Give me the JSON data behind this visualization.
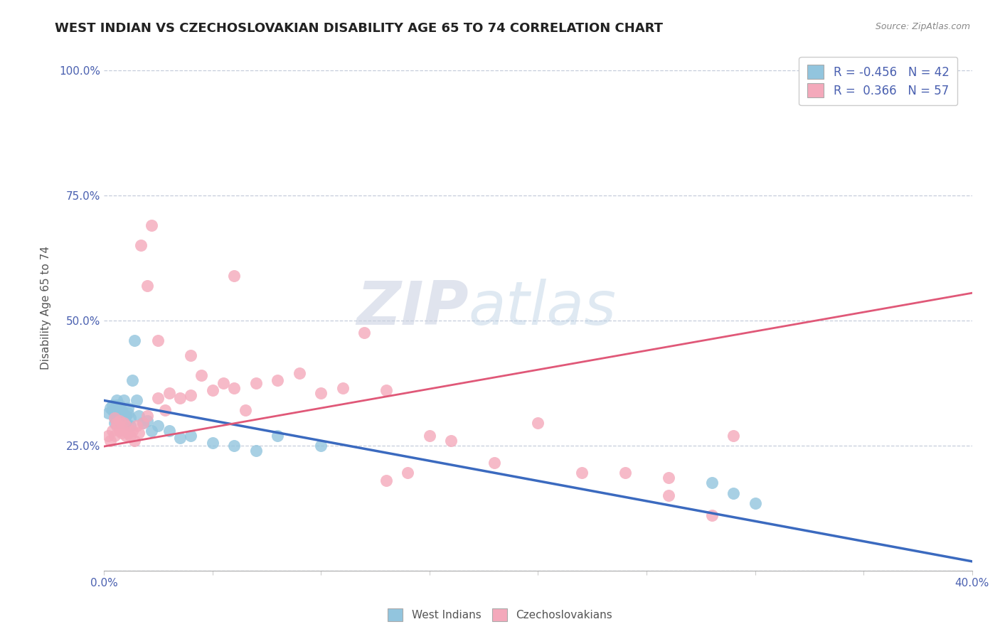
{
  "title": "WEST INDIAN VS CZECHOSLOVAKIAN DISABILITY AGE 65 TO 74 CORRELATION CHART",
  "source": "Source: ZipAtlas.com",
  "ylabel": "Disability Age 65 to 74",
  "xlim": [
    0.0,
    0.4
  ],
  "ylim": [
    0.0,
    1.05
  ],
  "ytick_positions": [
    0.0,
    0.25,
    0.5,
    0.75,
    1.0
  ],
  "ytick_labels": [
    "",
    "25.0%",
    "50.0%",
    "75.0%",
    "100.0%"
  ],
  "xtick_positions": [
    0.0,
    0.05,
    0.1,
    0.15,
    0.2,
    0.25,
    0.3,
    0.35,
    0.4
  ],
  "xtick_labels": [
    "0.0%",
    "",
    "",
    "",
    "",
    "",
    "",
    "",
    "40.0%"
  ],
  "legend_blue_label": "West Indians",
  "legend_pink_label": "Czechoslovakians",
  "blue_R": -0.456,
  "pink_R": 0.366,
  "blue_N": 42,
  "pink_N": 57,
  "blue_color": "#92c5de",
  "pink_color": "#f4a9bb",
  "blue_line_color": "#3b6abf",
  "pink_line_color": "#e05878",
  "watermark_zip": "ZIP",
  "watermark_atlas": "atlas",
  "title_fontsize": 13,
  "axis_label_fontsize": 11,
  "tick_fontsize": 11,
  "blue_trend_y0": 0.34,
  "blue_trend_y1": 0.018,
  "pink_trend_y0": 0.248,
  "pink_trend_y1": 0.555,
  "blue_x": [
    0.002,
    0.003,
    0.004,
    0.004,
    0.005,
    0.005,
    0.005,
    0.006,
    0.006,
    0.007,
    0.007,
    0.007,
    0.008,
    0.008,
    0.008,
    0.009,
    0.009,
    0.01,
    0.01,
    0.011,
    0.011,
    0.012,
    0.012,
    0.013,
    0.014,
    0.015,
    0.016,
    0.018,
    0.02,
    0.022,
    0.025,
    0.03,
    0.035,
    0.04,
    0.05,
    0.06,
    0.07,
    0.08,
    0.1,
    0.28,
    0.29,
    0.3
  ],
  "blue_y": [
    0.315,
    0.325,
    0.32,
    0.33,
    0.295,
    0.305,
    0.315,
    0.33,
    0.34,
    0.31,
    0.32,
    0.33,
    0.295,
    0.305,
    0.32,
    0.3,
    0.34,
    0.295,
    0.31,
    0.315,
    0.325,
    0.29,
    0.305,
    0.38,
    0.46,
    0.34,
    0.31,
    0.295,
    0.3,
    0.28,
    0.29,
    0.28,
    0.265,
    0.27,
    0.255,
    0.25,
    0.24,
    0.27,
    0.25,
    0.175,
    0.155,
    0.135
  ],
  "pink_x": [
    0.002,
    0.003,
    0.004,
    0.005,
    0.005,
    0.006,
    0.006,
    0.007,
    0.007,
    0.008,
    0.008,
    0.009,
    0.01,
    0.01,
    0.011,
    0.012,
    0.013,
    0.014,
    0.015,
    0.016,
    0.017,
    0.018,
    0.02,
    0.022,
    0.025,
    0.028,
    0.03,
    0.035,
    0.04,
    0.045,
    0.05,
    0.055,
    0.06,
    0.065,
    0.07,
    0.08,
    0.09,
    0.1,
    0.11,
    0.12,
    0.13,
    0.14,
    0.15,
    0.16,
    0.18,
    0.2,
    0.22,
    0.24,
    0.26,
    0.29,
    0.02,
    0.025,
    0.04,
    0.06,
    0.13,
    0.26,
    0.28
  ],
  "pink_y": [
    0.27,
    0.26,
    0.28,
    0.27,
    0.305,
    0.29,
    0.295,
    0.28,
    0.3,
    0.275,
    0.285,
    0.295,
    0.29,
    0.27,
    0.275,
    0.27,
    0.28,
    0.26,
    0.29,
    0.275,
    0.65,
    0.295,
    0.31,
    0.69,
    0.345,
    0.32,
    0.355,
    0.345,
    0.35,
    0.39,
    0.36,
    0.375,
    0.365,
    0.32,
    0.375,
    0.38,
    0.395,
    0.355,
    0.365,
    0.475,
    0.36,
    0.195,
    0.27,
    0.26,
    0.215,
    0.295,
    0.195,
    0.195,
    0.185,
    0.27,
    0.57,
    0.46,
    0.43,
    0.59,
    0.18,
    0.15,
    0.11
  ]
}
